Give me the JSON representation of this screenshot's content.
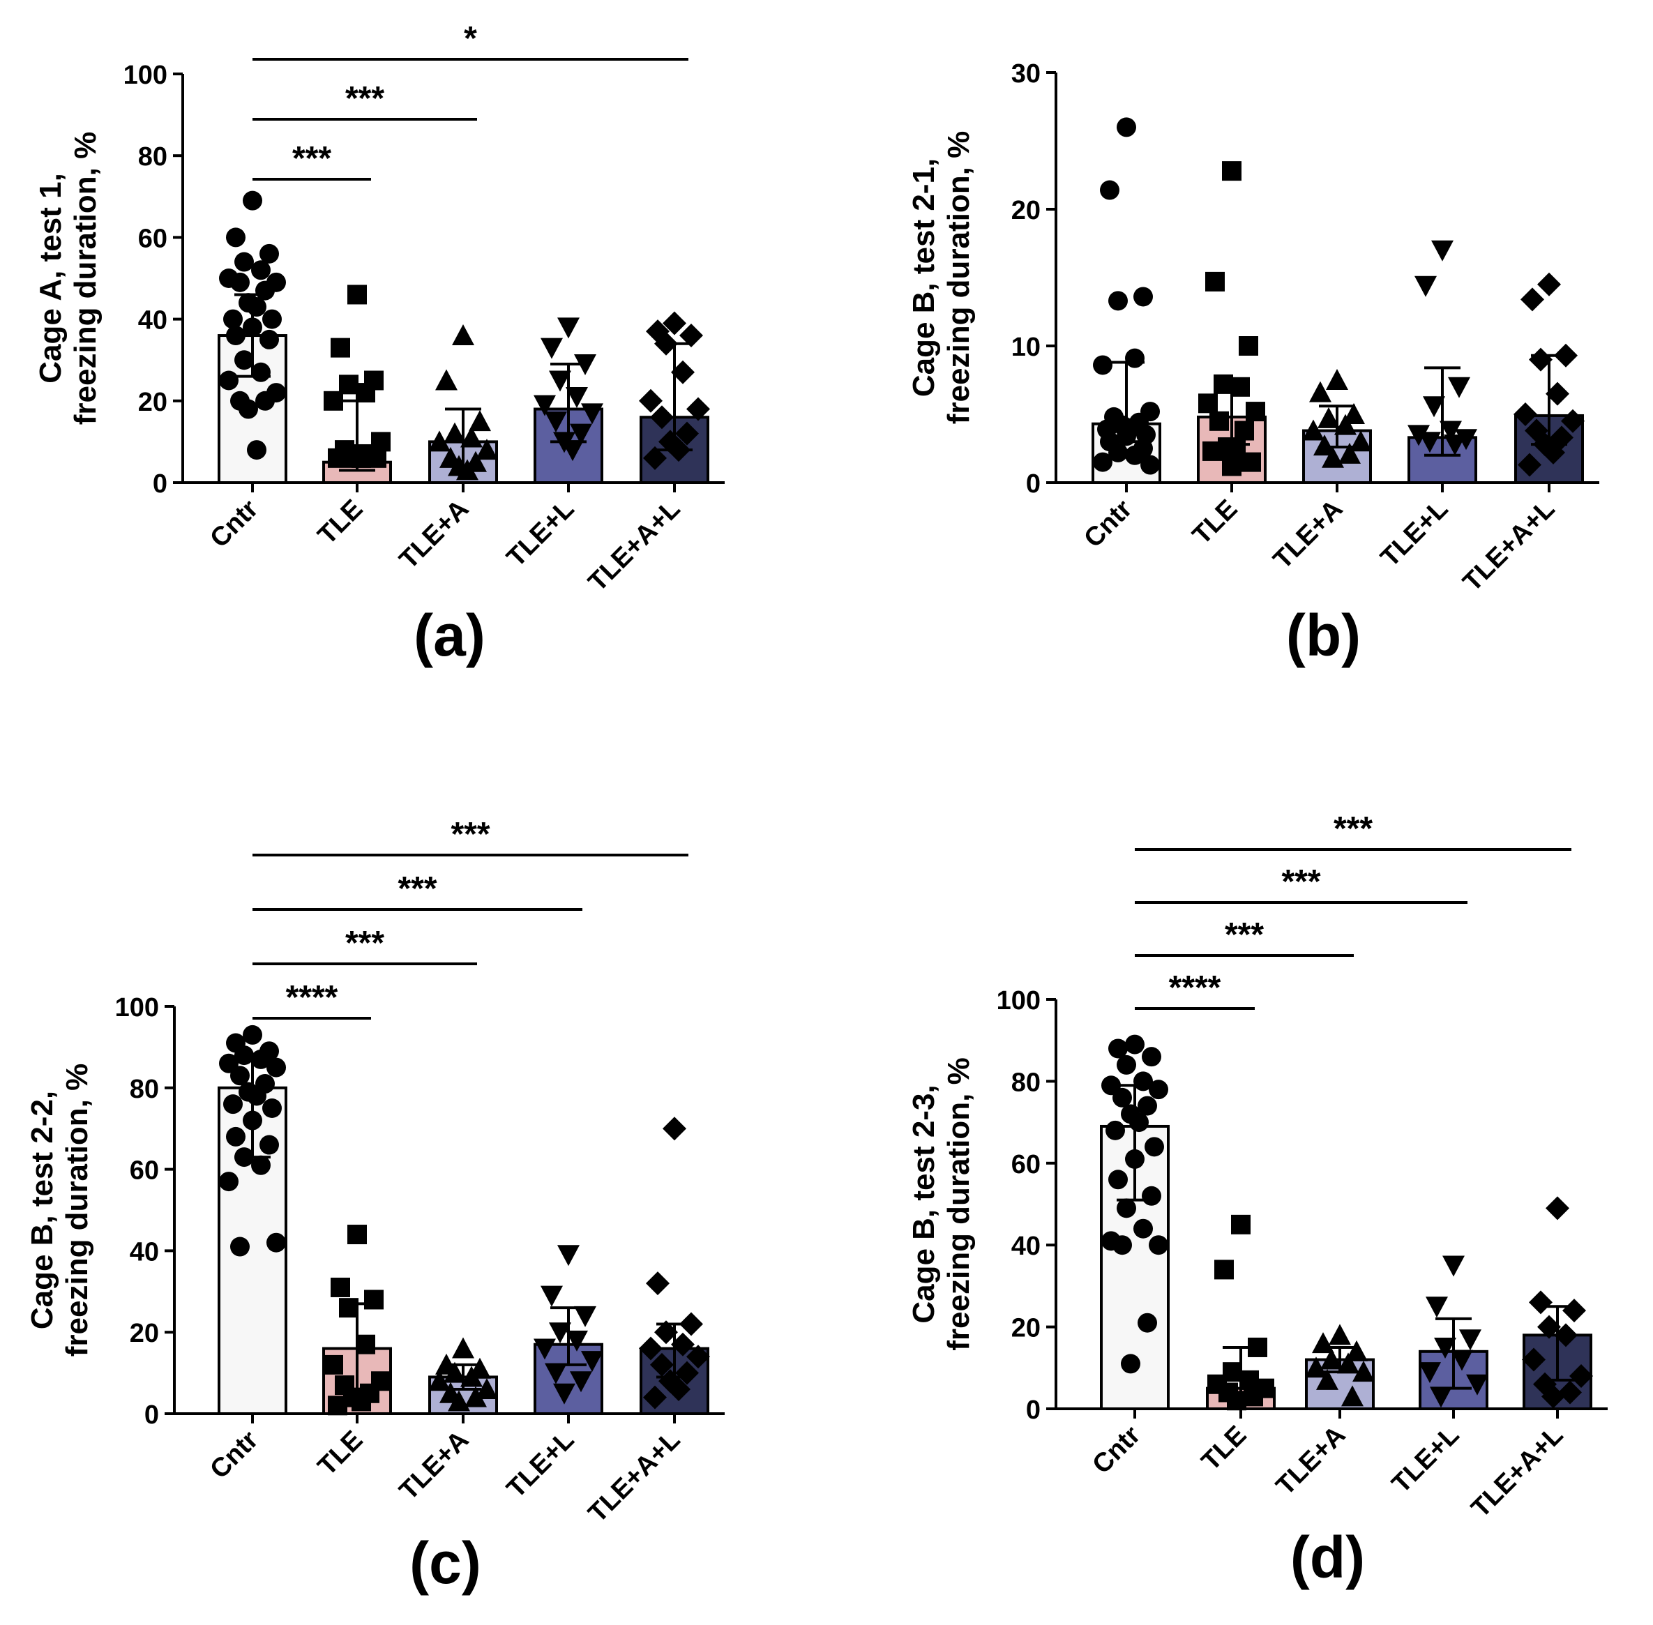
{
  "colors": {
    "ink": "#000000",
    "background": "#ffffff",
    "groups": [
      "#f7f7f7",
      "#e8b8b8",
      "#aeb0d4",
      "#5c5fa0",
      "#2f3358"
    ]
  },
  "marker_shapes": [
    "circle",
    "square",
    "triangle-up",
    "triangle-down",
    "diamond"
  ],
  "chart_data": [
    {
      "type": "bar",
      "panel_label": "(a)",
      "ylabel_line1": "Cage A, test 1,",
      "ylabel_line2": "freezing duration, %",
      "ylim": [
        0,
        100
      ],
      "yticks": [
        0,
        20,
        40,
        60,
        80,
        100
      ],
      "ytick_labels": [
        "0",
        "20",
        "40",
        "60",
        "80",
        "100"
      ],
      "categories": [
        "Cntr",
        "TLE",
        "TLE+A",
        "TLE+L",
        "TLE+A+L"
      ],
      "means": [
        36,
        5,
        10,
        18,
        16
      ],
      "err_low": [
        26,
        3,
        4,
        10,
        8
      ],
      "err_high": [
        46,
        20,
        18,
        29,
        34
      ],
      "points": [
        [
          69,
          60,
          56,
          54,
          52,
          50,
          49,
          49,
          47,
          44,
          43,
          40,
          40,
          38,
          36,
          35,
          30,
          27,
          25,
          22,
          20,
          20,
          18,
          8
        ],
        [
          46,
          33,
          25,
          24,
          22,
          20,
          10,
          8,
          7,
          7,
          6,
          6,
          6,
          6
        ],
        [
          36,
          25,
          15,
          12,
          11,
          10,
          8,
          6,
          5,
          4,
          3
        ],
        [
          38,
          33,
          29,
          25,
          21,
          19,
          17,
          15,
          12,
          10,
          8
        ],
        [
          39,
          37,
          36,
          34,
          27,
          20,
          18,
          16,
          12,
          10,
          8,
          6
        ]
      ],
      "significance": [
        {
          "from": 0,
          "to": 1,
          "label": "***"
        },
        {
          "from": 0,
          "to": 2,
          "label": "***"
        },
        {
          "from": 0,
          "to": 4,
          "label": "*"
        }
      ]
    },
    {
      "type": "bar",
      "panel_label": "(b)",
      "ylabel_line1": "Cage B, test 2-1,",
      "ylabel_line2": "freezing duration, %",
      "ylim": [
        0,
        30
      ],
      "yticks": [
        0,
        10,
        20,
        30
      ],
      "ytick_labels": [
        "0",
        "10",
        "20",
        "30"
      ],
      "categories": [
        "Cntr",
        "TLE",
        "TLE+A",
        "TLE+L",
        "TLE+A+L"
      ],
      "means": [
        4.3,
        4.8,
        3.8,
        3.3,
        4.9
      ],
      "err_low": [
        3.0,
        2.8,
        2.6,
        2.0,
        2.8
      ],
      "err_high": [
        8.8,
        7.4,
        5.6,
        8.4,
        9.3
      ],
      "points": [
        [
          26,
          21.4,
          13.6,
          13.3,
          9.1,
          8.6,
          5.2,
          4.8,
          4.4,
          4.2,
          4.0,
          3.9,
          3.5,
          3.4,
          3.0,
          2.5,
          2.2,
          2.0,
          1.5,
          1.3
        ],
        [
          22.8,
          14.7,
          10,
          7.2,
          7.0,
          5.8,
          5.2,
          4.5,
          3.8,
          2.6,
          2.5,
          2.3,
          1.5,
          1.2
        ],
        [
          7.5,
          6.6,
          5.0,
          4.7,
          4.2,
          3.8,
          3.0,
          2.7,
          2.1,
          1.8
        ],
        [
          17.0,
          14.4,
          7.0,
          5.6,
          3.8,
          3.5,
          3.2,
          3.0,
          2.8
        ],
        [
          14.5,
          13.4,
          9.3,
          9.0,
          6.5,
          5.0,
          4.5,
          3.8,
          3.3,
          2.8,
          2.2,
          1.3
        ]
      ],
      "significance": []
    },
    {
      "type": "bar",
      "panel_label": "(c)",
      "ylabel_line1": "Cage B, test 2-2,",
      "ylabel_line2": "freezing duration, %",
      "ylim": [
        0,
        100
      ],
      "yticks": [
        0,
        20,
        40,
        60,
        80,
        100
      ],
      "ytick_labels": [
        "0",
        "20",
        "40",
        "60",
        "80",
        "100"
      ],
      "categories": [
        "Cntr",
        "TLE",
        "TLE+A",
        "TLE+L",
        "TLE+A+L"
      ],
      "means": [
        80,
        16,
        9,
        17,
        16
      ],
      "err_low": [
        63,
        5,
        6,
        12,
        9
      ],
      "err_high": [
        88,
        27,
        12,
        26,
        22
      ],
      "points": [
        [
          93,
          91,
          89,
          88,
          87,
          86,
          85,
          83,
          81,
          79,
          78,
          76,
          75,
          72,
          68,
          66,
          63,
          61,
          57,
          42,
          41
        ],
        [
          44,
          31,
          28,
          26,
          17,
          12,
          8,
          7,
          5,
          4,
          3,
          2
        ],
        [
          16,
          12,
          11,
          10,
          9,
          8,
          6,
          5,
          4,
          3
        ],
        [
          39,
          29,
          24,
          20,
          18,
          16,
          13,
          10,
          8,
          5
        ],
        [
          70,
          32,
          22,
          20,
          17,
          16,
          14,
          12,
          10,
          8,
          6,
          4
        ]
      ],
      "significance": [
        {
          "from": 0,
          "to": 1,
          "label": "****"
        },
        {
          "from": 0,
          "to": 2,
          "label": "***"
        },
        {
          "from": 0,
          "to": 3,
          "label": "***"
        },
        {
          "from": 0,
          "to": 4,
          "label": "***"
        }
      ]
    },
    {
      "type": "bar",
      "panel_label": "(d)",
      "ylabel_line1": "Cage B, test 2-3,",
      "ylabel_line2": "freezing duration, %",
      "ylim": [
        0,
        100
      ],
      "yticks": [
        0,
        20,
        40,
        60,
        80,
        100
      ],
      "ytick_labels": [
        "0",
        "20",
        "40",
        "60",
        "80",
        "100"
      ],
      "categories": [
        "Cntr",
        "TLE",
        "TLE+A",
        "TLE+L",
        "TLE+A+L"
      ],
      "means": [
        69,
        5,
        12,
        14,
        18
      ],
      "err_low": [
        51,
        2,
        9,
        5,
        7
      ],
      "err_high": [
        79,
        15,
        15,
        22,
        25
      ],
      "points": [
        [
          89,
          88,
          86,
          84,
          80,
          79,
          78,
          76,
          74,
          72,
          70,
          68,
          64,
          61,
          56,
          52,
          49,
          44,
          41,
          40,
          40,
          21,
          11
        ],
        [
          45,
          34,
          15,
          9,
          7,
          6,
          5,
          4,
          3,
          2
        ],
        [
          18,
          16,
          14,
          12,
          11,
          10,
          9,
          7,
          3
        ],
        [
          35,
          25,
          17,
          15,
          12,
          9,
          6,
          3
        ],
        [
          49,
          26,
          24,
          20,
          18,
          12,
          8,
          6,
          4,
          3
        ]
      ],
      "significance": [
        {
          "from": 0,
          "to": 1,
          "label": "****"
        },
        {
          "from": 0,
          "to": 2,
          "label": "***"
        },
        {
          "from": 0,
          "to": 3,
          "label": "***"
        },
        {
          "from": 0,
          "to": 4,
          "label": "***"
        }
      ]
    }
  ]
}
